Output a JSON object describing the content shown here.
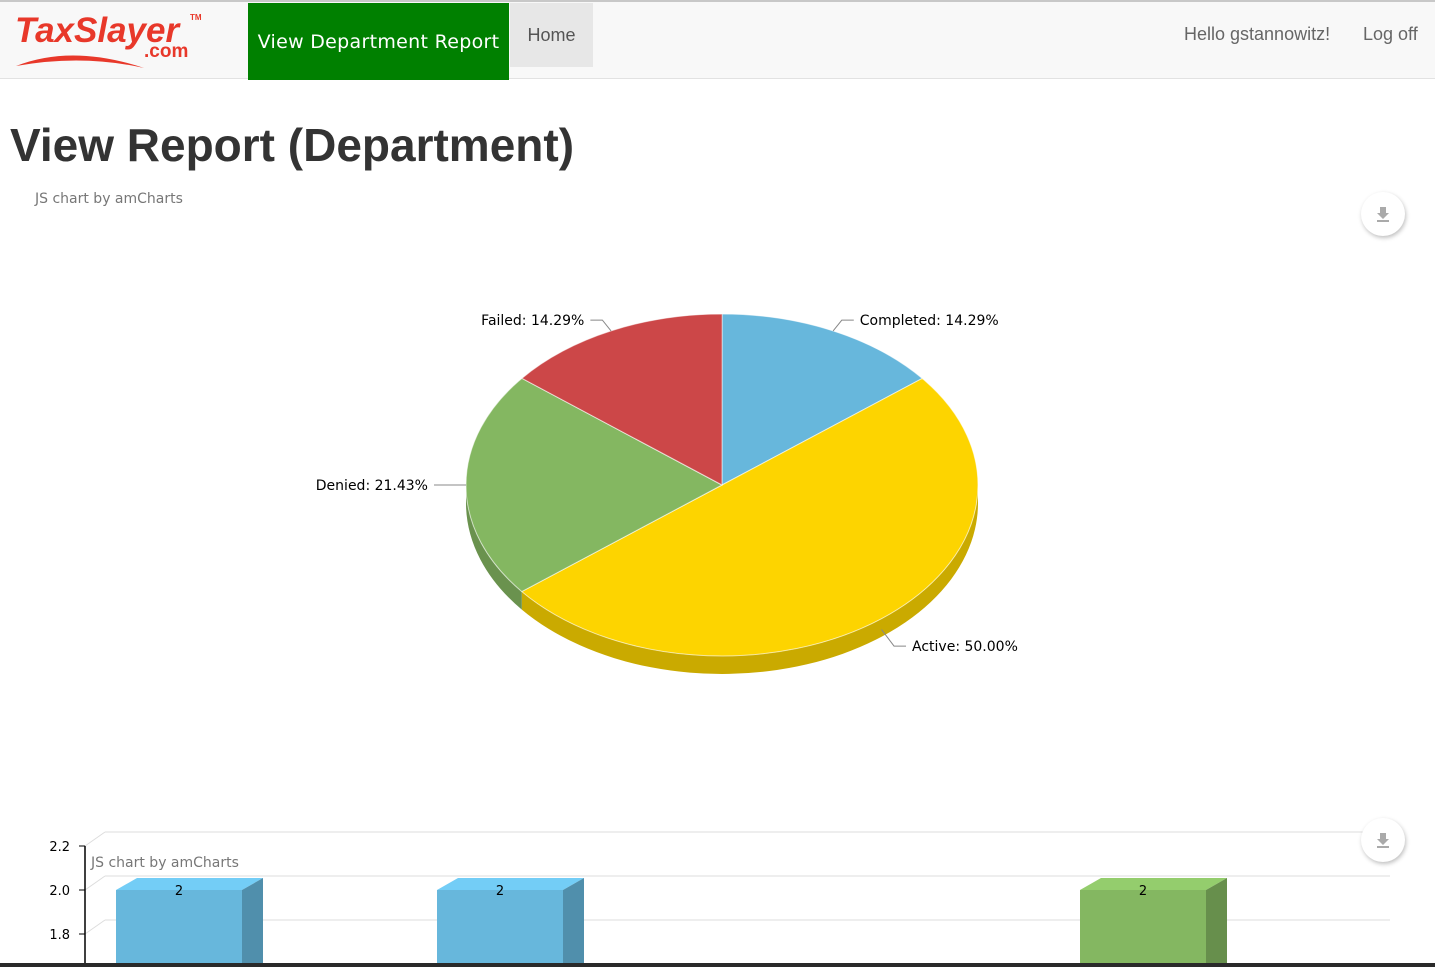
{
  "header": {
    "logo_text": "TaxSlayer",
    "logo_domain": ".com",
    "logo_tm": "TM",
    "nav_active": "View Department Report",
    "nav_home": "Home",
    "greeting": "Hello gstannowitz!",
    "logoff": "Log off"
  },
  "page": {
    "title": "View Report (Department)",
    "chart_credit": "JS chart by amCharts"
  },
  "icons": {
    "download": "download-icon"
  },
  "colors": {
    "nav_green": "#008000",
    "logo_red": "#e8382a"
  },
  "chart_data": [
    {
      "type": "pie",
      "title": "",
      "labels_format": "[[title]]: [[percents]]%",
      "slices": [
        {
          "title": "Completed",
          "percent": 14.29,
          "color": "#67b7dc",
          "label": "Completed: 14.29%"
        },
        {
          "title": "Active",
          "percent": 50.0,
          "color": "#fdd400",
          "label": "Active: 50.00%"
        },
        {
          "title": "Denied",
          "percent": 21.43,
          "color": "#84b761",
          "label": "Denied: 21.43%"
        },
        {
          "title": "Failed",
          "percent": 14.29,
          "color": "#cc4748",
          "label": "Failed: 14.29%"
        }
      ],
      "depth3d": true
    },
    {
      "type": "bar",
      "title": "",
      "y_ticks": [
        "2.2",
        "2.0",
        "1.8"
      ],
      "ylim": [
        1.6,
        2.2
      ],
      "columns": [
        {
          "value": 2,
          "label": "2",
          "color": "#67b7dc"
        },
        {
          "value": 2,
          "label": "2",
          "color": "#67b7dc"
        },
        {
          "value": 2,
          "label": "2",
          "color": "#84b761"
        }
      ],
      "depth3d": true,
      "grid": true
    }
  ]
}
